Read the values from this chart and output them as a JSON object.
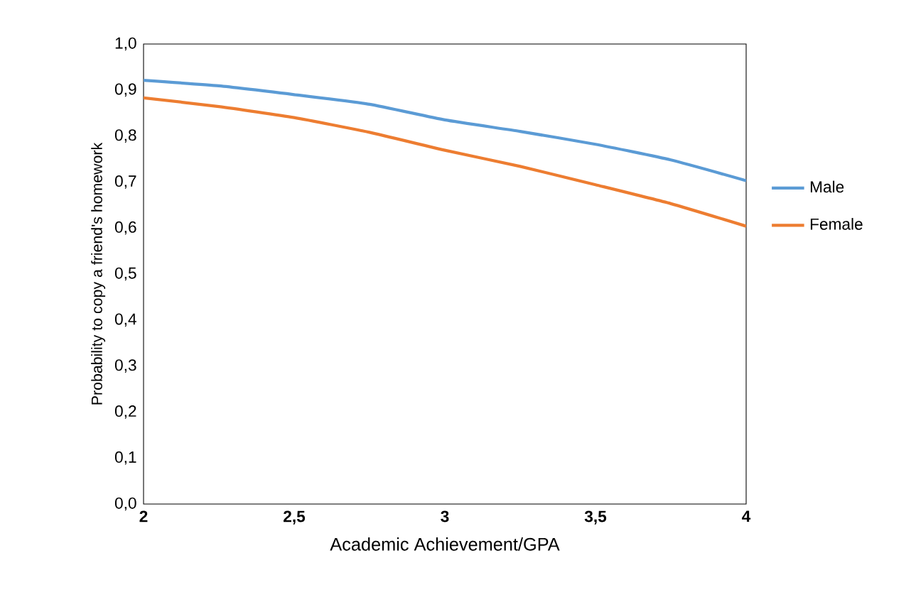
{
  "chart_data": {
    "type": "line",
    "xlabel": "Academic Achievement/GPA",
    "ylabel": "Probability to copy a friend's homework",
    "x": [
      2,
      2.25,
      2.5,
      2.75,
      3,
      3.25,
      3.5,
      3.75,
      4
    ],
    "series": [
      {
        "name": "Male",
        "color": "#5b9bd5",
        "values": [
          0.921,
          0.909,
          0.89,
          0.869,
          0.835,
          0.81,
          0.782,
          0.748,
          0.703
        ]
      },
      {
        "name": "Female",
        "color": "#ed7d31",
        "values": [
          0.883,
          0.864,
          0.84,
          0.808,
          0.769,
          0.734,
          0.694,
          0.653,
          0.604
        ]
      }
    ],
    "xlim": [
      2,
      4
    ],
    "xticks": [
      2,
      {
        "value": 2.5,
        "label": "2,5"
      },
      3,
      {
        "value": 3.5,
        "label": "3,5"
      },
      4
    ],
    "ylim": [
      0,
      1
    ],
    "yticks": [
      {
        "value": 0,
        "label": "0,0"
      },
      {
        "value": 0.1,
        "label": "0,1"
      },
      {
        "value": 0.2,
        "label": "0,2"
      },
      {
        "value": 0.3,
        "label": "0,3"
      },
      {
        "value": 0.4,
        "label": "0,4"
      },
      {
        "value": 0.5,
        "label": "0,5"
      },
      {
        "value": 0.6,
        "label": "0,6"
      },
      {
        "value": 0.7,
        "label": "0,7"
      },
      {
        "value": 0.8,
        "label": "0,8"
      },
      {
        "value": 0.9,
        "label": "0,9"
      },
      {
        "value": 1,
        "label": "1,0"
      }
    ],
    "grid": false,
    "legend": "right",
    "marker": "none",
    "line_style": "solid"
  }
}
